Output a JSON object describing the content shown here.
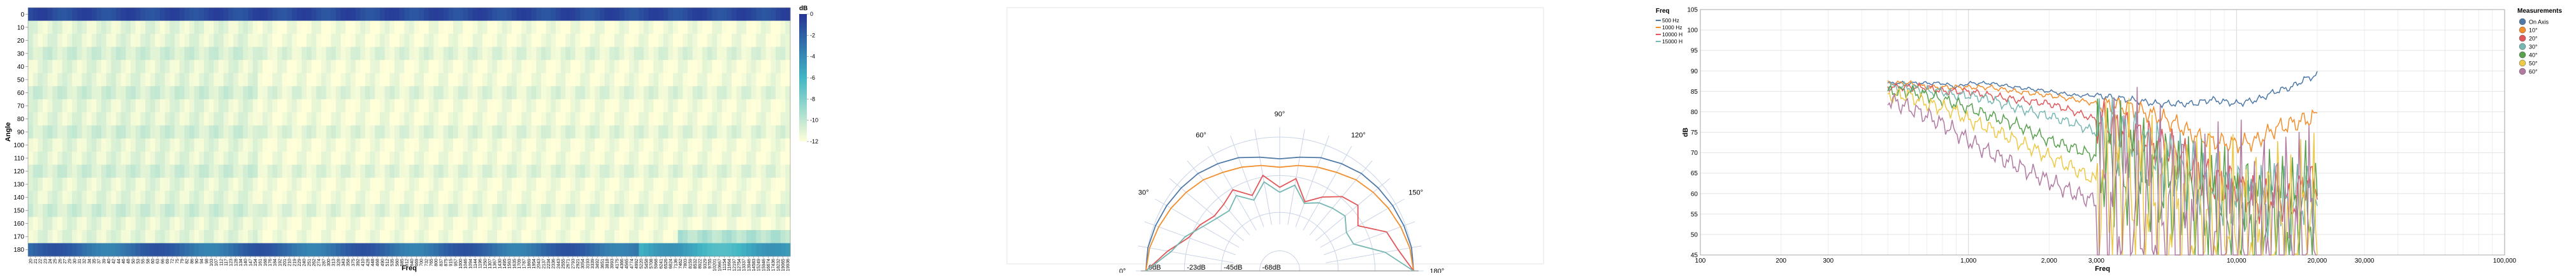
{
  "chart_data": [
    {
      "type": "heatmap",
      "title": "",
      "xlabel": "Freq",
      "ylabel": "Angle",
      "y_categories": [
        0,
        10,
        20,
        30,
        40,
        50,
        60,
        70,
        80,
        90,
        100,
        110,
        120,
        130,
        140,
        150,
        160,
        170,
        180
      ],
      "x_categories": [
        "20",
        "21",
        "22",
        "23",
        "24",
        "25",
        "26",
        "27",
        "29",
        "30",
        "31",
        "32",
        "34",
        "35",
        "37",
        "39",
        "40",
        "42",
        "44",
        "46",
        "48",
        "50",
        "53",
        "55",
        "58",
        "60",
        "63",
        "66",
        "69",
        "72",
        "75",
        "79",
        "82",
        "86",
        "90",
        "94",
        "98",
        "103",
        "107",
        "112",
        "117",
        "123",
        "128",
        "134",
        "140",
        "147",
        "154",
        "161",
        "168",
        "176",
        "184",
        "192",
        "201",
        "210",
        "219",
        "229",
        "240",
        "251",
        "262",
        "274",
        "287",
        "300",
        "313",
        "328",
        "343",
        "358",
        "375",
        "392",
        "410",
        "428",
        "448",
        "468",
        "490",
        "512",
        "535",
        "560",
        "585",
        "612",
        "640",
        "669",
        "700",
        "732",
        "765",
        "800",
        "837",
        "875",
        "915",
        "957",
        "1000",
        "1046",
        "1094",
        "1144",
        "1196",
        "1250",
        "1307",
        "1367",
        "1430",
        "1495",
        "1563",
        "1635",
        "1709",
        "1787",
        "1869",
        "1954",
        "2043",
        "2137",
        "2234",
        "2336",
        "2443",
        "2555",
        "2671",
        "2793",
        "2921",
        "3054",
        "3193",
        "3339",
        "3492",
        "3651",
        "3818",
        "3993",
        "4175",
        "4366",
        "4565",
        "4774",
        "4992",
        "5220",
        "5458",
        "5708",
        "5968",
        "6241",
        "6526",
        "6824",
        "7136",
        "7462",
        "7803",
        "8159",
        "8532",
        "8922",
        "9329",
        "9755",
        "10201",
        "10667",
        "11154",
        "11664",
        "12197",
        "12754",
        "13337",
        "13946",
        "14583",
        "15249",
        "15946",
        "16674",
        "17436",
        "18232",
        "19065",
        "19936"
      ],
      "colorbar_label": "dB",
      "colorbar_ticks": [
        "0",
        "-2",
        "-4",
        "-6",
        "-8",
        "-10",
        "-12"
      ],
      "color_range": [
        -12,
        0
      ],
      "colors": {
        "low": "#ffffd9",
        "mid": "#41b6c4",
        "high": "#253494"
      }
    },
    {
      "type": "line",
      "subtype": "polar",
      "title": "",
      "legend_title": "Freq",
      "legend_position": "top-right",
      "angle_labels": [
        "0°",
        "30°",
        "60°",
        "90°",
        "120°",
        "150°",
        "180°"
      ],
      "radius_labels": [
        "0dB",
        "-23dB",
        "-45dB",
        "-68dB"
      ],
      "angles": [
        0,
        10,
        20,
        30,
        40,
        50,
        60,
        70,
        80,
        90,
        100,
        110,
        120,
        130,
        140,
        150,
        160,
        170,
        180
      ],
      "series": [
        {
          "name": "500 Hz",
          "color": "#4e79a7",
          "values": [
            0,
            0,
            -1,
            -2,
            -3,
            -4,
            -6,
            -8,
            -11,
            -13,
            -11,
            -8,
            -6,
            -4,
            -3,
            -2,
            -1,
            0,
            0
          ]
        },
        {
          "name": "1000 Hz",
          "color": "#f28e2b",
          "values": [
            0,
            -1,
            -3,
            -5,
            -7,
            -9,
            -12,
            -14,
            -16,
            -18,
            -16,
            -14,
            -12,
            -9,
            -7,
            -5,
            -3,
            -1,
            0
          ]
        },
        {
          "name": "10000 Hz",
          "color": "#e15759",
          "values": [
            0,
            -12,
            -22,
            -25,
            -29,
            -28,
            -24,
            -32,
            -22,
            -30,
            -24,
            -36,
            -29,
            -22,
            -19,
            -26,
            -12,
            -8,
            0
          ]
        },
        {
          "name": "15000 Hz",
          "color": "#76b7b2",
          "values": [
            0,
            -14,
            -20,
            -27,
            -31,
            -33,
            -28,
            -35,
            -26,
            -33,
            -28,
            -37,
            -33,
            -31,
            -29,
            -34,
            -33,
            -16,
            0
          ]
        }
      ]
    },
    {
      "type": "line",
      "title": "",
      "xlabel": "Freq",
      "ylabel": "dB",
      "x_scale": "log",
      "xlim": [
        100,
        100000
      ],
      "ylim": [
        45,
        105
      ],
      "x_tick_labels": [
        "100",
        "200",
        "300",
        "1,000",
        "2,000",
        "3,000",
        "10,000",
        "20,000",
        "30,000",
        "100,000"
      ],
      "y_tick_labels": [
        "45",
        "50",
        "55",
        "60",
        "65",
        "70",
        "75",
        "80",
        "85",
        "90",
        "95",
        "100",
        "105"
      ],
      "grid": true,
      "legend_title": "Measurements",
      "legend_position": "top-right",
      "series": [
        {
          "name": "On Axis",
          "color": "#4e79a7",
          "x": [
            500,
            600,
            700,
            800,
            900,
            1000,
            1200,
            1500,
            2000,
            2500,
            3000,
            4000,
            5000,
            6000,
            7000,
            8000,
            10000,
            12000,
            14000,
            16000,
            18000,
            20000
          ],
          "values": [
            87,
            87,
            87,
            87,
            86,
            87,
            87,
            86,
            85,
            84,
            84,
            83,
            82,
            82,
            82,
            83,
            82,
            83,
            85,
            86,
            88,
            89
          ]
        },
        {
          "name": "10°",
          "color": "#f28e2b",
          "x": [
            500,
            600,
            700,
            800,
            900,
            1000,
            1200,
            1500,
            2000,
            2500,
            3000,
            4000,
            5000,
            6000,
            7000,
            8000,
            10000,
            12000,
            14000,
            16000,
            18000,
            20000
          ],
          "values": [
            87,
            87,
            86,
            86,
            86,
            86,
            86,
            85,
            84,
            83,
            82,
            81,
            79,
            77,
            74,
            73,
            72,
            73,
            76,
            77,
            78,
            79
          ]
        },
        {
          "name": "20°",
          "color": "#e15759",
          "x": [
            500,
            600,
            700,
            800,
            900,
            1000,
            1200,
            1500,
            2000,
            2500,
            3000,
            4000,
            5000,
            6000,
            7000,
            8000,
            10000,
            12000,
            14000,
            16000,
            18000,
            20000
          ],
          "values": [
            86,
            86,
            86,
            85,
            85,
            85,
            84,
            83,
            82,
            80,
            78,
            75,
            72,
            70,
            66,
            63,
            62,
            58,
            60,
            57,
            63,
            62
          ]
        },
        {
          "name": "30°",
          "color": "#76b7b2",
          "x": [
            500,
            600,
            700,
            800,
            900,
            1000,
            1200,
            1500,
            2000,
            2500,
            3000,
            4000,
            5000,
            6000,
            7000,
            8000,
            10000,
            12000,
            14000,
            16000,
            18000,
            20000
          ],
          "values": [
            86,
            86,
            85,
            85,
            84,
            84,
            83,
            81,
            79,
            77,
            75,
            72,
            69,
            66,
            63,
            61,
            59,
            57,
            59,
            56,
            60,
            58
          ]
        },
        {
          "name": "40°",
          "color": "#59a14f",
          "x": [
            500,
            600,
            700,
            800,
            900,
            1000,
            1200,
            1500,
            2000,
            2500,
            3000,
            4000,
            5000,
            6000,
            7000,
            8000,
            10000,
            12000,
            14000,
            16000,
            18000,
            20000
          ],
          "values": [
            85,
            85,
            84,
            83,
            82,
            81,
            79,
            77,
            73,
            71,
            69,
            66,
            63,
            61,
            59,
            57,
            56,
            55,
            57,
            54,
            58,
            56
          ]
        },
        {
          "name": "50°",
          "color": "#edc948",
          "x": [
            500,
            600,
            700,
            800,
            900,
            1000,
            1200,
            1500,
            2000,
            2500,
            3000,
            4000,
            5000,
            6000,
            7000,
            8000,
            10000,
            12000,
            14000,
            16000,
            18000,
            20000
          ],
          "values": [
            84,
            84,
            82,
            81,
            80,
            78,
            76,
            73,
            69,
            66,
            63,
            60,
            58,
            56,
            54,
            53,
            52,
            51,
            53,
            50,
            54,
            52
          ]
        },
        {
          "name": "60°",
          "color": "#b07aa1",
          "x": [
            500,
            600,
            700,
            800,
            900,
            1000,
            1200,
            1500,
            2000,
            2500,
            3000,
            4000,
            5000,
            6000,
            7000,
            8000,
            10000,
            12000,
            14000,
            16000,
            18000,
            20000
          ],
          "values": [
            83,
            81,
            79,
            77,
            75,
            73,
            70,
            67,
            63,
            60,
            58,
            55,
            53,
            51,
            50,
            48,
            47,
            47,
            49,
            47,
            50,
            48
          ]
        }
      ]
    }
  ]
}
